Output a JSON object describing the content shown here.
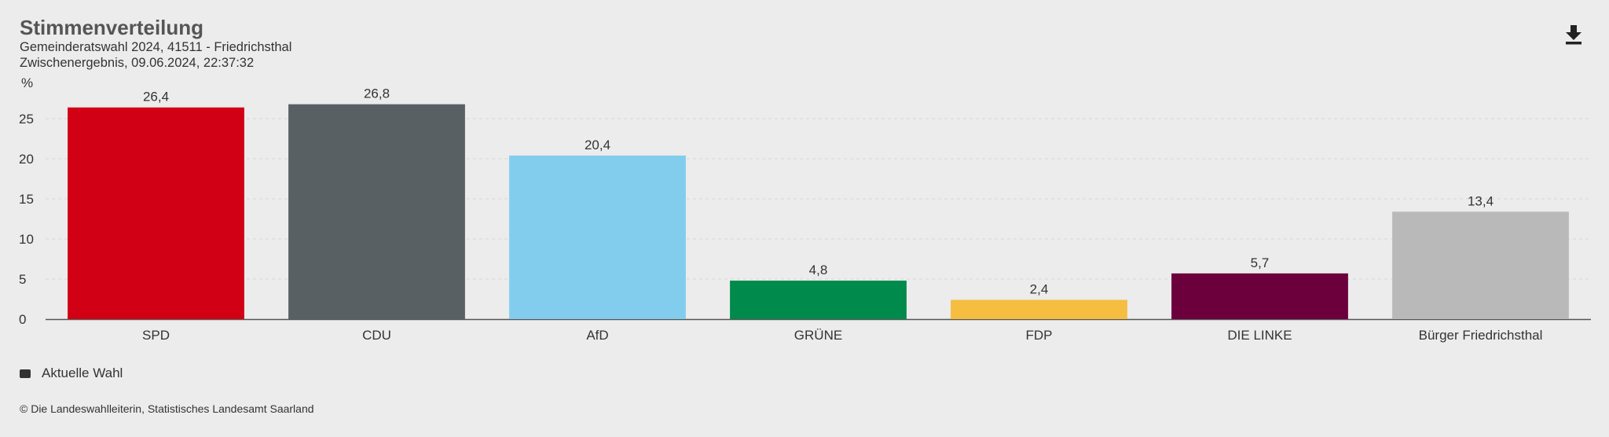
{
  "header": {
    "title": "Stimmenverteilung",
    "subtitle_line1": "Gemeinderatswahl 2024, 41511 - Friedrichsthal",
    "subtitle_line2": "Zwischenergebnis, 09.06.2024, 22:37:32"
  },
  "toolbar": {
    "download_icon": "download-icon"
  },
  "chart_data": {
    "type": "bar",
    "title": "Stimmenverteilung",
    "ylabel": "%",
    "ylim": [
      0,
      30
    ],
    "yticks": [
      0,
      5,
      10,
      15,
      20,
      25
    ],
    "grid": true,
    "categories": [
      "SPD",
      "CDU",
      "AfD",
      "GRÜNE",
      "FDP",
      "DIE LINKE",
      "Bürger Friedrichsthal"
    ],
    "series": [
      {
        "name": "Aktuelle Wahl",
        "values": [
          26.4,
          26.8,
          20.4,
          4.8,
          2.4,
          5.7,
          13.4
        ],
        "value_labels": [
          "26,4",
          "26,8",
          "20,4",
          "4,8",
          "2,4",
          "5,7",
          "13,4"
        ],
        "colors": [
          "#d20014",
          "#596063",
          "#82cdee",
          "#008a4c",
          "#f5be41",
          "#6b003c",
          "#b9b9b9"
        ]
      }
    ],
    "legend_position": "bottom-left"
  },
  "legend": {
    "label": "Aktuelle Wahl",
    "color": "#333333"
  },
  "footer": {
    "source": "© Die Landeswahlleiterin, Statistisches Landesamt Saarland"
  }
}
